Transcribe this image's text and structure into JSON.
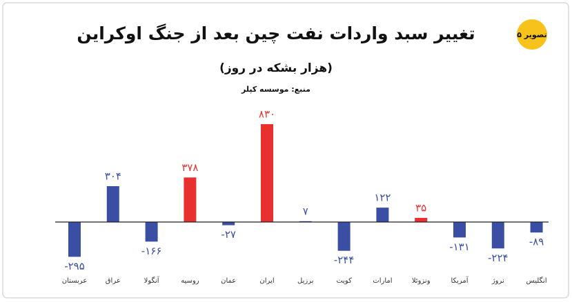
{
  "chart_data": {
    "type": "bar",
    "title": "تغییر سبد واردات نفت چین بعد از جنگ اوکراین",
    "subtitle": "(هزار بشکه در روز)",
    "source": "منبع: موسسه کپلر",
    "badge": "تصویر ۵",
    "categories": [
      "عربستان",
      "عراق",
      "آنگولا",
      "روسیه",
      "عمان",
      "ایران",
      "برزیل",
      "کویت",
      "امارات",
      "ونزوئلا",
      "آمریکا",
      "نروژ",
      "انگلیس"
    ],
    "values": [
      -295,
      304,
      -166,
      378,
      -27,
      830,
      7,
      -244,
      122,
      35,
      -131,
      -224,
      -89
    ],
    "value_labels": [
      "-۲۹۵",
      "۳۰۴",
      "-۱۶۶",
      "۳۷۸",
      "-۲۷",
      "۸۳۰",
      "۷",
      "-۲۴۴",
      "۱۲۲",
      "۳۵",
      "-۱۳۱",
      "-۲۲۴",
      "-۸۹"
    ],
    "colors": [
      "#3a4fa3",
      "#3a4fa3",
      "#3a4fa3",
      "#e8312f",
      "#3a4fa3",
      "#e8312f",
      "#3a4fa3",
      "#3a4fa3",
      "#3a4fa3",
      "#e8312f",
      "#3a4fa3",
      "#3a4fa3",
      "#3a4fa3"
    ]
  }
}
